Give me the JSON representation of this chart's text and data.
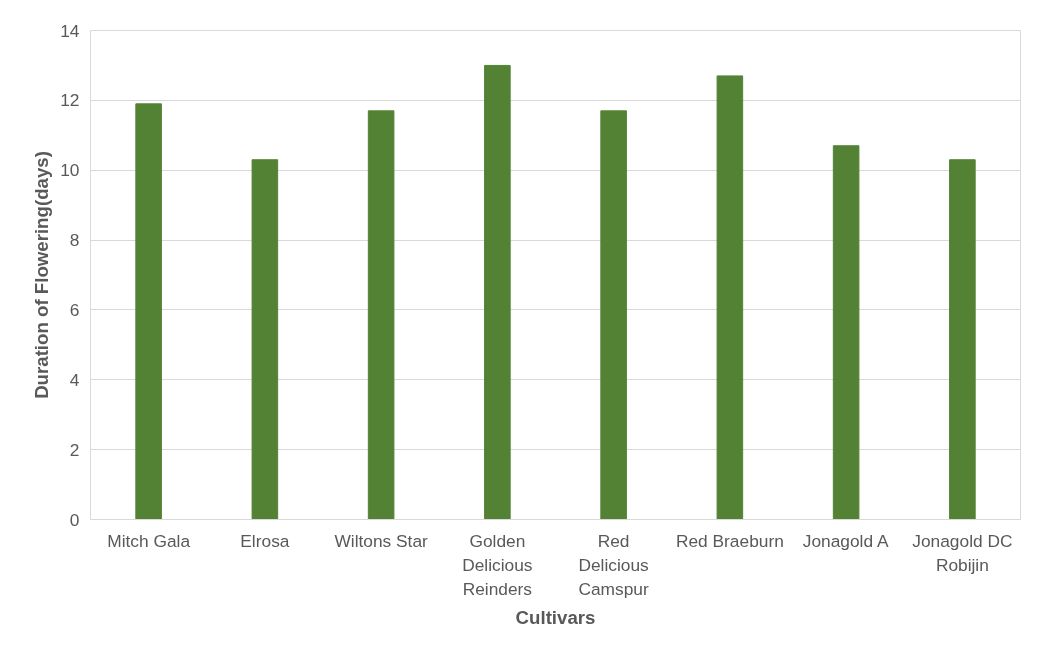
{
  "chart_data": {
    "type": "bar",
    "xlabel": "Cultivars",
    "ylabel": "Duration of Flowering(days)",
    "categories": [
      "Mitch Gala",
      "Elrosa",
      "Wiltons Star",
      "Golden Delicious Reinders",
      "Red Delicious Camspur",
      "Red Braeburn",
      "Jonagold A",
      "Jonagold DC Robijin"
    ],
    "values": [
      11.9,
      10.3,
      11.7,
      13.0,
      11.7,
      12.7,
      10.7,
      10.3
    ],
    "color": "#548235",
    "ylim": [
      0,
      14
    ],
    "yticks": [
      0,
      2,
      4,
      6,
      8,
      10,
      12,
      14
    ],
    "grid": "y"
  }
}
